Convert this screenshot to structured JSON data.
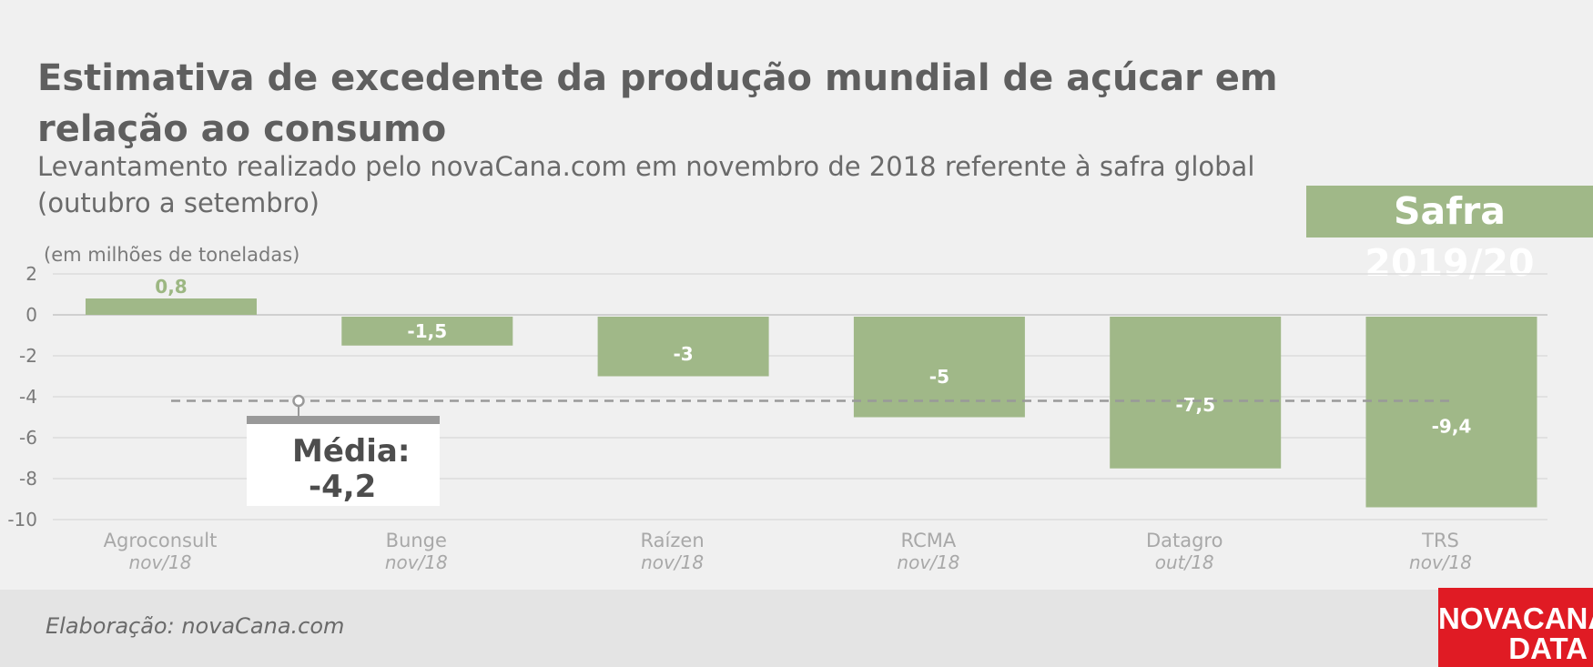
{
  "header": {
    "title": "Estimativa de excedente da produção mundial de açúcar em relação ao consumo",
    "subtitle": "Levantamento realizado pelo novaCana.com em novembro de 2018 referente à safra global (outubro a setembro)",
    "badge": "Safra 2019/20",
    "units": "(em milhões de toneladas)"
  },
  "chart_data": {
    "type": "bar",
    "categories": [
      "Agroconsult",
      "Bunge",
      "Raízen",
      "RCMA",
      "Datagro",
      "TRS"
    ],
    "category_dates": [
      "nov/18",
      "nov/18",
      "nov/18",
      "nov/18",
      "out/18",
      "nov/18"
    ],
    "values": [
      0.8,
      -1.5,
      -3,
      -5,
      -7.5,
      -9.4
    ],
    "value_labels": [
      "0,8",
      "-1,5",
      "-3",
      "-5",
      "-7,5",
      "-9,4"
    ],
    "ylim": [
      -10,
      2
    ],
    "yticks": [
      2,
      0,
      -2,
      -4,
      -6,
      -8,
      -10
    ],
    "ytick_labels": [
      "2",
      "0",
      "-2",
      "-4",
      "-6",
      "-8",
      "-10"
    ],
    "grid": true,
    "average": {
      "value": -4.2,
      "label": "Média:",
      "value_label": "-4,2"
    },
    "colors": {
      "bar": "#a0b888",
      "positive_label": "#9cb782",
      "negative_label": "#ffffff",
      "average_line": "#999999"
    }
  },
  "footer": {
    "source": "Elaboração: novaCana.com",
    "logo_line1": "NOVACANA",
    "logo_line2": "DATA"
  }
}
